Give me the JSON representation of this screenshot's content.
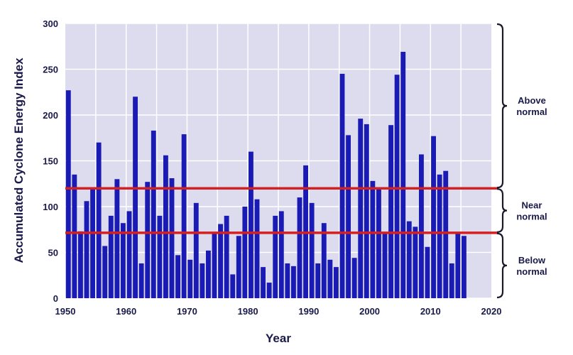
{
  "chart_data": {
    "type": "bar",
    "xlabel": "Year",
    "ylabel": "Accumulated Cyclone Energy Index",
    "xlim": [
      1950,
      2020
    ],
    "ylim": [
      0,
      300
    ],
    "xticks": [
      "1950",
      "1960",
      "1970",
      "1980",
      "1990",
      "2000",
      "2010",
      "2020"
    ],
    "yticks": [
      "0",
      "50",
      "100",
      "150",
      "200",
      "250",
      "300"
    ],
    "grid": true,
    "colors": {
      "bars": "#1a1ab4",
      "thresholds": "#d42020",
      "plot_bg": "#dcdcee",
      "grid": "#ffffff",
      "text": "#1a1a4a"
    },
    "thresholds": [
      120,
      71.4
    ],
    "bands": [
      {
        "label": [
          "Above",
          "normal"
        ],
        "range": [
          120,
          300
        ]
      },
      {
        "label": [
          "Near",
          "normal"
        ],
        "range": [
          71.4,
          120
        ]
      },
      {
        "label": [
          "Below",
          "normal"
        ],
        "range": [
          0,
          71.4
        ]
      }
    ],
    "x": [
      1950,
      1951,
      1952,
      1953,
      1954,
      1955,
      1956,
      1957,
      1958,
      1959,
      1960,
      1961,
      1962,
      1963,
      1964,
      1965,
      1966,
      1967,
      1968,
      1969,
      1970,
      1971,
      1972,
      1973,
      1974,
      1975,
      1976,
      1977,
      1978,
      1979,
      1980,
      1981,
      1982,
      1983,
      1984,
      1985,
      1986,
      1987,
      1988,
      1989,
      1990,
      1991,
      1992,
      1993,
      1994,
      1995,
      1996,
      1997,
      1998,
      1999,
      2000,
      2001,
      2002,
      2003,
      2004,
      2005,
      2006,
      2007,
      2008,
      2009,
      2010,
      2011,
      2012,
      2013,
      2014,
      2015
    ],
    "values": [
      227,
      135,
      73,
      106,
      119,
      170,
      57,
      90,
      130,
      82,
      95,
      220,
      38,
      127,
      183,
      90,
      156,
      131,
      47,
      179,
      42,
      104,
      38,
      52,
      72,
      81,
      90,
      26,
      68,
      100,
      160,
      108,
      34,
      17,
      90,
      95,
      38,
      35,
      110,
      145,
      104,
      38,
      82,
      42,
      34,
      245,
      178,
      44,
      196,
      190,
      128,
      119,
      71,
      189,
      244,
      269,
      84,
      78,
      157,
      56,
      177,
      135,
      139,
      38,
      72,
      68
    ]
  }
}
